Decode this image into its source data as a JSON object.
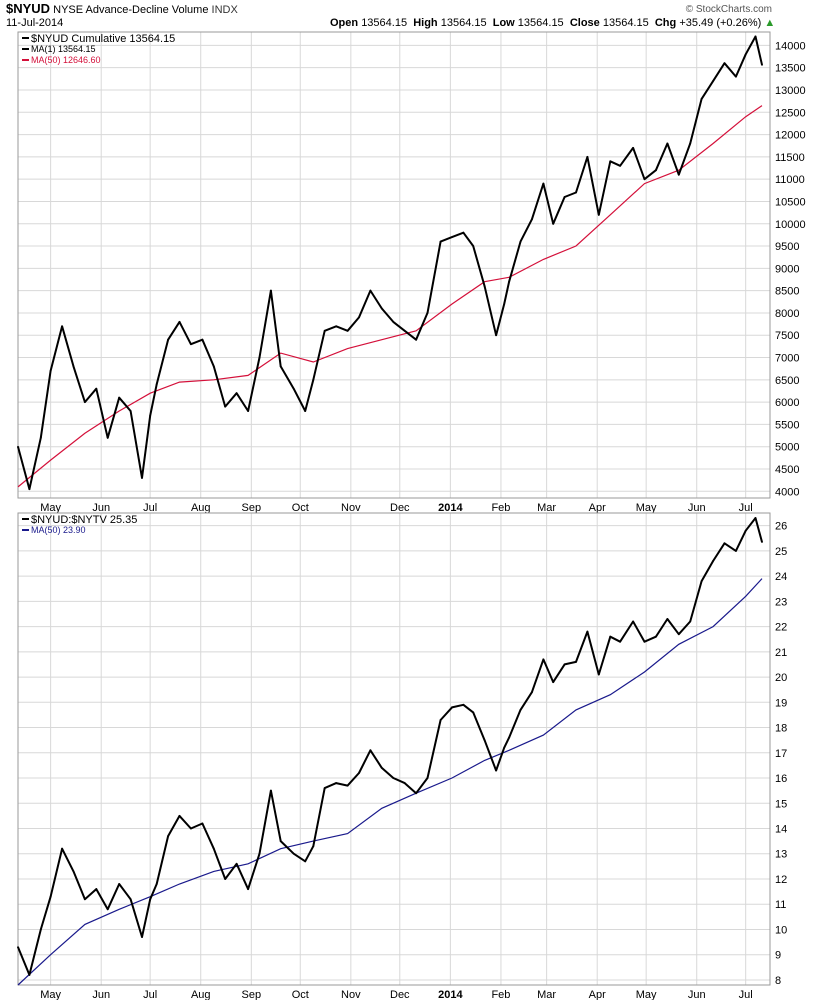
{
  "header": {
    "symbol": "$NYUD",
    "name": "NYSE Advance-Decline Volume",
    "exchange": "INDX",
    "date": "11-Jul-2014",
    "brand": "© StockCharts.com",
    "quote": {
      "open_label": "Open",
      "open": "13564.15",
      "high_label": "High",
      "high": "13564.15",
      "low_label": "Low",
      "low": "13564.15",
      "close_label": "Close",
      "close": "13564.15",
      "chg_label": "Chg",
      "chg": "+35.49 (+0.26%)",
      "chg_icon": "triangle-up-icon"
    }
  },
  "colors": {
    "price": "#000000",
    "ma_top": "#d4103a",
    "ma_bottom": "#1a1a8c",
    "grid": "#d8d8d8",
    "frame": "#9a9a9a",
    "up": "#2a9a2a"
  },
  "chart_data": [
    {
      "type": "line",
      "legend": [
        "$NYUD Cumulative 13564.15",
        "MA(1) 13564.15",
        "MA(50) 12646.60"
      ],
      "x_tick_labels": [
        "May",
        "Jun",
        "Jul",
        "Aug",
        "Sep",
        "Oct",
        "Nov",
        "Dec",
        "2014",
        "Feb",
        "Mar",
        "Apr",
        "May",
        "Jun",
        "Jul"
      ],
      "y_tick_labels": [
        "4000",
        "4500",
        "5000",
        "5500",
        "6000",
        "6500",
        "7000",
        "7500",
        "8000",
        "8500",
        "9000",
        "9500",
        "10000",
        "10500",
        "11000",
        "11500",
        "12000",
        "12500",
        "13000",
        "13500",
        "14000"
      ],
      "ylim": [
        3850,
        14300
      ],
      "grid": true,
      "legend_position": "top-left",
      "series": [
        {
          "name": "$NYUD Cumulative",
          "x": [
            "2013-04-11",
            "2013-04-18",
            "2013-04-25",
            "2013-05-01",
            "2013-05-08",
            "2013-05-15",
            "2013-05-22",
            "2013-05-29",
            "2013-06-05",
            "2013-06-12",
            "2013-06-19",
            "2013-06-26",
            "2013-07-01",
            "2013-07-05",
            "2013-07-12",
            "2013-07-19",
            "2013-07-26",
            "2013-08-02",
            "2013-08-09",
            "2013-08-16",
            "2013-08-23",
            "2013-08-30",
            "2013-09-06",
            "2013-09-13",
            "2013-09-19",
            "2013-09-27",
            "2013-10-04",
            "2013-10-09",
            "2013-10-16",
            "2013-10-23",
            "2013-10-30",
            "2013-11-06",
            "2013-11-13",
            "2013-11-20",
            "2013-11-27",
            "2013-12-04",
            "2013-12-11",
            "2013-12-18",
            "2013-12-26",
            "2014-01-02",
            "2014-01-09",
            "2014-01-15",
            "2014-01-22",
            "2014-01-29",
            "2014-02-03",
            "2014-02-06",
            "2014-02-13",
            "2014-02-20",
            "2014-02-27",
            "2014-03-05",
            "2014-03-12",
            "2014-03-19",
            "2014-03-26",
            "2014-04-02",
            "2014-04-09",
            "2014-04-15",
            "2014-04-23",
            "2014-04-30",
            "2014-05-07",
            "2014-05-14",
            "2014-05-21",
            "2014-05-28",
            "2014-06-04",
            "2014-06-11",
            "2014-06-18",
            "2014-06-25",
            "2014-07-01",
            "2014-07-07",
            "2014-07-11"
          ],
          "values": [
            5000,
            4050,
            5200,
            6700,
            7700,
            6800,
            6000,
            6300,
            5200,
            6100,
            5800,
            4300,
            5700,
            6400,
            7400,
            7800,
            7300,
            7400,
            6800,
            5900,
            6200,
            5800,
            7000,
            8500,
            6800,
            6300,
            5800,
            6500,
            7600,
            7700,
            7600,
            7900,
            8500,
            8100,
            7800,
            7600,
            7400,
            8000,
            9600,
            9700,
            9800,
            9500,
            8600,
            7500,
            8200,
            8700,
            9600,
            10100,
            10900,
            10000,
            10600,
            10700,
            11500,
            10200,
            11400,
            11300,
            11700,
            11000,
            11200,
            11800,
            11100,
            11800,
            12800,
            13200,
            13600,
            13300,
            13800,
            14200,
            13564
          ]
        },
        {
          "name": "MA(50)",
          "x": [
            "2013-04-11",
            "2013-05-01",
            "2013-05-22",
            "2013-06-12",
            "2013-07-01",
            "2013-07-19",
            "2013-08-09",
            "2013-08-30",
            "2013-09-19",
            "2013-10-09",
            "2013-10-30",
            "2013-11-20",
            "2013-12-11",
            "2014-01-02",
            "2014-01-22",
            "2014-02-06",
            "2014-02-27",
            "2014-03-19",
            "2014-04-09",
            "2014-04-30",
            "2014-05-21",
            "2014-06-11",
            "2014-07-01",
            "2014-07-11"
          ],
          "values": [
            4100,
            4700,
            5300,
            5800,
            6200,
            6450,
            6500,
            6600,
            7100,
            6900,
            7200,
            7400,
            7600,
            8200,
            8700,
            8800,
            9200,
            9500,
            10200,
            10900,
            11200,
            11800,
            12400,
            12650
          ]
        }
      ]
    },
    {
      "type": "line",
      "legend": [
        "$NYUD:$NYTV 25.35",
        "MA(50) 23.90"
      ],
      "x_tick_labels": [
        "May",
        "Jun",
        "Jul",
        "Aug",
        "Sep",
        "Oct",
        "Nov",
        "Dec",
        "2014",
        "Feb",
        "Mar",
        "Apr",
        "May",
        "Jun",
        "Jul"
      ],
      "y_tick_labels": [
        "8",
        "9",
        "10",
        "11",
        "12",
        "13",
        "14",
        "15",
        "16",
        "17",
        "18",
        "19",
        "20",
        "21",
        "22",
        "23",
        "24",
        "25",
        "26"
      ],
      "ylim": [
        7.8,
        26.5
      ],
      "grid": true,
      "legend_position": "top-left",
      "series": [
        {
          "name": "$NYUD:$NYTV",
          "x": [
            "2013-04-11",
            "2013-04-18",
            "2013-04-25",
            "2013-05-01",
            "2013-05-08",
            "2013-05-15",
            "2013-05-22",
            "2013-05-29",
            "2013-06-05",
            "2013-06-12",
            "2013-06-19",
            "2013-06-26",
            "2013-07-01",
            "2013-07-05",
            "2013-07-12",
            "2013-07-19",
            "2013-07-26",
            "2013-08-02",
            "2013-08-09",
            "2013-08-16",
            "2013-08-23",
            "2013-08-30",
            "2013-09-06",
            "2013-09-13",
            "2013-09-19",
            "2013-09-27",
            "2013-10-04",
            "2013-10-09",
            "2013-10-16",
            "2013-10-23",
            "2013-10-30",
            "2013-11-06",
            "2013-11-13",
            "2013-11-20",
            "2013-11-27",
            "2013-12-04",
            "2013-12-11",
            "2013-12-18",
            "2013-12-26",
            "2014-01-02",
            "2014-01-09",
            "2014-01-15",
            "2014-01-22",
            "2014-01-29",
            "2014-02-03",
            "2014-02-06",
            "2014-02-13",
            "2014-02-20",
            "2014-02-27",
            "2014-03-05",
            "2014-03-12",
            "2014-03-19",
            "2014-03-26",
            "2014-04-02",
            "2014-04-09",
            "2014-04-15",
            "2014-04-23",
            "2014-04-30",
            "2014-05-07",
            "2014-05-14",
            "2014-05-21",
            "2014-05-28",
            "2014-06-04",
            "2014-06-11",
            "2014-06-18",
            "2014-06-25",
            "2014-07-01",
            "2014-07-07",
            "2014-07-11"
          ],
          "values": [
            9.3,
            8.2,
            10.0,
            11.3,
            13.2,
            12.3,
            11.2,
            11.6,
            10.8,
            11.8,
            11.2,
            9.7,
            11.2,
            11.8,
            13.7,
            14.5,
            14.0,
            14.2,
            13.2,
            12.0,
            12.6,
            11.6,
            13.0,
            15.5,
            13.5,
            13.0,
            12.7,
            13.3,
            15.6,
            15.8,
            15.7,
            16.2,
            17.1,
            16.4,
            16.0,
            15.8,
            15.4,
            16.0,
            18.3,
            18.8,
            18.9,
            18.6,
            17.5,
            16.3,
            17.2,
            17.6,
            18.7,
            19.4,
            20.7,
            19.8,
            20.5,
            20.6,
            21.8,
            20.1,
            21.6,
            21.4,
            22.2,
            21.4,
            21.6,
            22.3,
            21.7,
            22.2,
            23.8,
            24.6,
            25.3,
            25.0,
            25.8,
            26.3,
            25.35
          ]
        },
        {
          "name": "MA(50)",
          "x": [
            "2013-04-11",
            "2013-05-01",
            "2013-05-22",
            "2013-06-12",
            "2013-07-01",
            "2013-07-19",
            "2013-08-09",
            "2013-08-30",
            "2013-09-19",
            "2013-10-09",
            "2013-10-30",
            "2013-11-20",
            "2013-12-11",
            "2014-01-02",
            "2014-01-22",
            "2014-02-06",
            "2014-02-27",
            "2014-03-19",
            "2014-04-09",
            "2014-04-30",
            "2014-05-21",
            "2014-06-11",
            "2014-07-01",
            "2014-07-11"
          ],
          "values": [
            7.8,
            9.0,
            10.2,
            10.8,
            11.3,
            11.8,
            12.3,
            12.6,
            13.2,
            13.5,
            13.8,
            14.8,
            15.4,
            16.0,
            16.7,
            17.1,
            17.7,
            18.7,
            19.3,
            20.2,
            21.3,
            22.0,
            23.2,
            23.9
          ]
        }
      ]
    }
  ]
}
